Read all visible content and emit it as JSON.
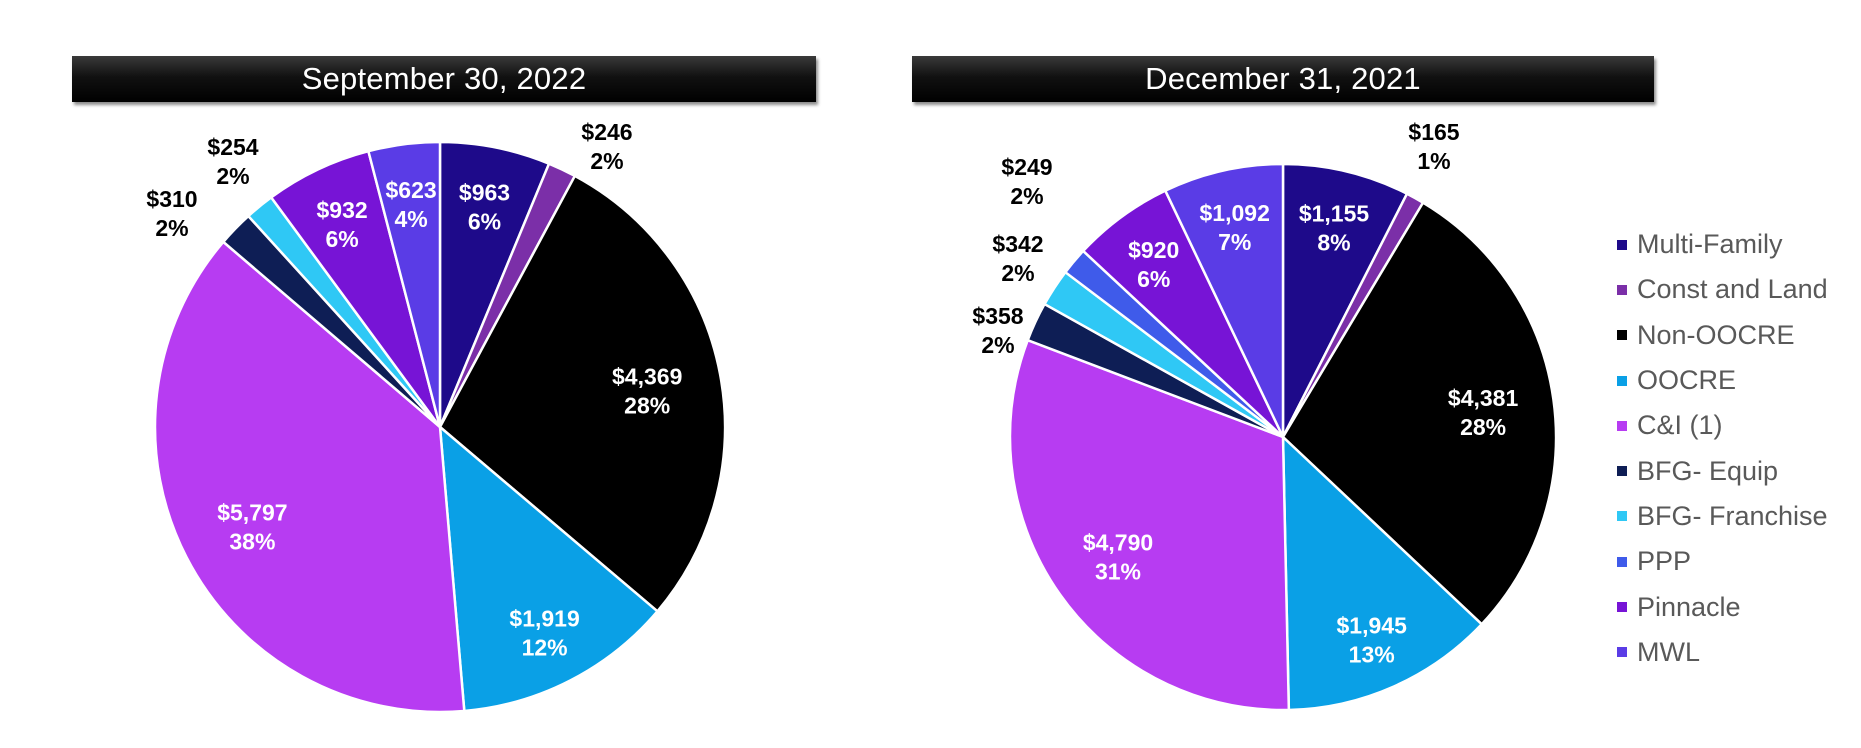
{
  "chart_data": [
    {
      "type": "pie",
      "title": "September 30, 2022",
      "slices": [
        {
          "name": "Multi-Family",
          "value_label": "$963",
          "pct_label": "6%",
          "value": 963,
          "color": "#1E0A8A",
          "label_color": "#ffffff",
          "label_inside": true
        },
        {
          "name": "Const and Land",
          "value_label": "$246",
          "pct_label": "2%",
          "value": 246,
          "color": "#7B2FA8",
          "label_color": "#000000",
          "label_inside": false
        },
        {
          "name": "Non-OOCRE",
          "value_label": "$4,369",
          "pct_label": "28%",
          "value": 4369,
          "color": "#000000",
          "label_color": "#ffffff",
          "label_inside": true
        },
        {
          "name": "OOCRE",
          "value_label": "$1,919",
          "pct_label": "12%",
          "value": 1919,
          "color": "#0AA0E6",
          "label_color": "#ffffff",
          "label_inside": true
        },
        {
          "name": "C&I (1)",
          "value_label": "$5,797",
          "pct_label": "38%",
          "value": 5797,
          "color": "#B73CF2",
          "label_color": "#ffffff",
          "label_inside": true
        },
        {
          "name": "BFG- Equip",
          "value_label": "$310",
          "pct_label": "2%",
          "value": 310,
          "color": "#0E1E55",
          "label_color": "#000000",
          "label_inside": false
        },
        {
          "name": "BFG- Franchise",
          "value_label": "$254",
          "pct_label": "2%",
          "value": 254,
          "color": "#2FC8F5",
          "label_color": "#000000",
          "label_inside": false
        },
        {
          "name": "PPP",
          "value_label": "",
          "pct_label": "",
          "value": 0,
          "color": "#3F5BEA",
          "label_color": "#000000",
          "label_inside": false
        },
        {
          "name": "Pinnacle",
          "value_label": "$932",
          "pct_label": "6%",
          "value": 932,
          "color": "#7714D6",
          "label_color": "#ffffff",
          "label_inside": true
        },
        {
          "name": "MWL",
          "value_label": "$623",
          "pct_label": "4%",
          "value": 623,
          "color": "#5A3CE6",
          "label_color": "#ffffff",
          "label_inside": true
        }
      ]
    },
    {
      "type": "pie",
      "title": "December 31, 2021",
      "slices": [
        {
          "name": "Multi-Family",
          "value_label": "$1,155",
          "pct_label": "8%",
          "value": 1155,
          "color": "#1E0A8A",
          "label_color": "#ffffff",
          "label_inside": true
        },
        {
          "name": "Const and Land",
          "value_label": "$165",
          "pct_label": "1%",
          "value": 165,
          "color": "#7B2FA8",
          "label_color": "#000000",
          "label_inside": false
        },
        {
          "name": "Non-OOCRE",
          "value_label": "$4,381",
          "pct_label": "28%",
          "value": 4381,
          "color": "#000000",
          "label_color": "#ffffff",
          "label_inside": true
        },
        {
          "name": "OOCRE",
          "value_label": "$1,945",
          "pct_label": "13%",
          "value": 1945,
          "color": "#0AA0E6",
          "label_color": "#ffffff",
          "label_inside": true
        },
        {
          "name": "C&I (1)",
          "value_label": "$4,790",
          "pct_label": "31%",
          "value": 4790,
          "color": "#B73CF2",
          "label_color": "#ffffff",
          "label_inside": true
        },
        {
          "name": "BFG- Equip",
          "value_label": "$358",
          "pct_label": "2%",
          "value": 358,
          "color": "#0E1E55",
          "label_color": "#000000",
          "label_inside": false
        },
        {
          "name": "BFG- Franchise",
          "value_label": "$342",
          "pct_label": "2%",
          "value": 342,
          "color": "#2FC8F5",
          "label_color": "#000000",
          "label_inside": false
        },
        {
          "name": "PPP",
          "value_label": "$249",
          "pct_label": "2%",
          "value": 249,
          "color": "#3F5BEA",
          "label_color": "#000000",
          "label_inside": false
        },
        {
          "name": "Pinnacle",
          "value_label": "$920",
          "pct_label": "6%",
          "value": 920,
          "color": "#7714D6",
          "label_color": "#ffffff",
          "label_inside": true
        },
        {
          "name": "MWL",
          "value_label": "$1,092",
          "pct_label": "7%",
          "value": 1092,
          "color": "#5A3CE6",
          "label_color": "#ffffff",
          "label_inside": true
        }
      ]
    }
  ],
  "legend": [
    {
      "label": "Multi-Family",
      "color": "#1E0A8A"
    },
    {
      "label": "Const and Land",
      "color": "#7B2FA8"
    },
    {
      "label": "Non-OOCRE",
      "color": "#000000"
    },
    {
      "label": "OOCRE",
      "color": "#0AA0E6"
    },
    {
      "label": "C&I (1)",
      "color": "#B73CF2"
    },
    {
      "label": "BFG- Equip",
      "color": "#0E1E55"
    },
    {
      "label": "BFG- Franchise",
      "color": "#2FC8F5"
    },
    {
      "label": "PPP",
      "color": "#3F5BEA"
    },
    {
      "label": "Pinnacle",
      "color": "#7714D6"
    },
    {
      "label": "MWL",
      "color": "#5A3CE6"
    }
  ]
}
